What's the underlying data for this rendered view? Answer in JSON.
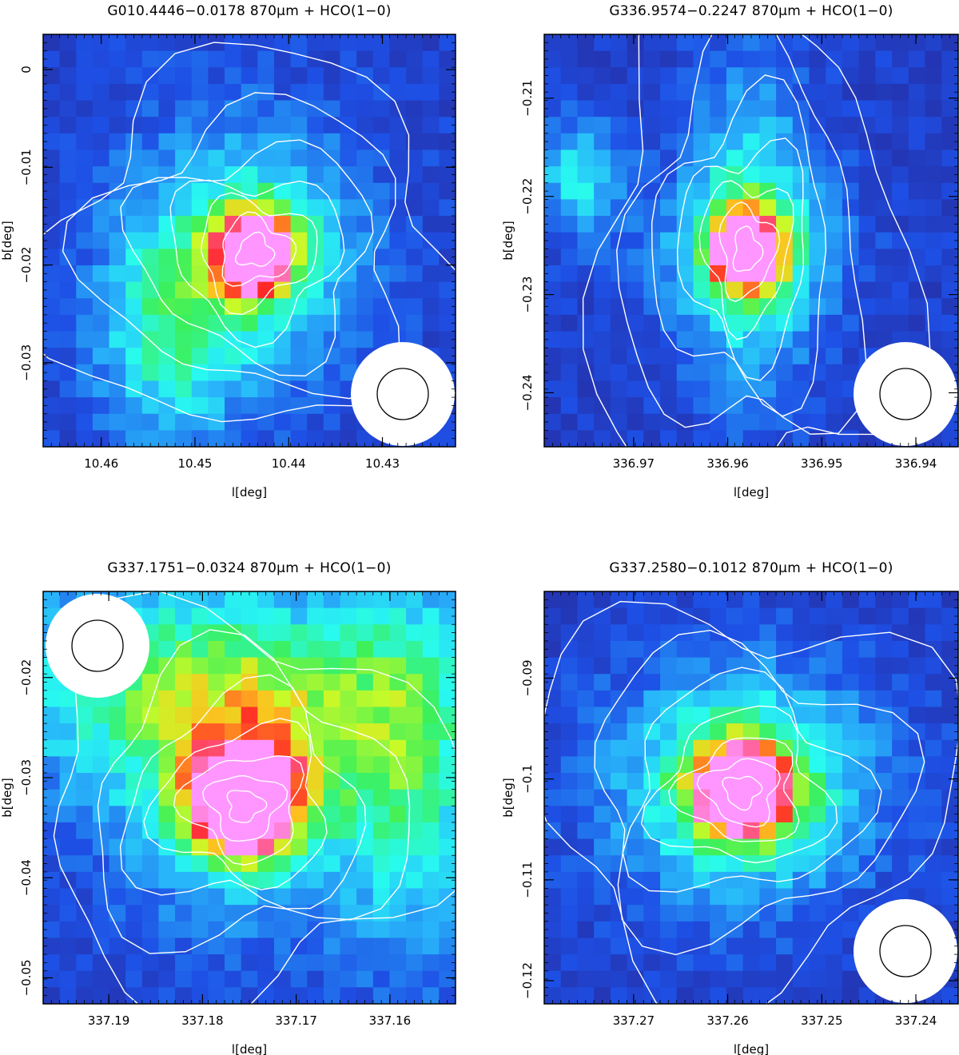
{
  "chart_data": [
    {
      "type": "heatmap",
      "title": "G010.4446−0.0178 870μm + HCO(1−0)",
      "xlabel": "l[deg]",
      "ylabel": "b[deg]",
      "xlim": [
        10.4662,
        10.4222
      ],
      "ylim": [
        -0.0386,
        0.0036
      ],
      "xticks": [
        "10.46",
        "10.45",
        "10.44",
        "10.43"
      ],
      "yticks": [
        "0",
        "−0.01",
        "−0.02",
        "−0.03"
      ],
      "peak": {
        "l": 10.4436,
        "b": -0.0186
      },
      "beam_corner": "bottom-right"
    },
    {
      "type": "heatmap",
      "title": "G336.9574−0.2247 870μm + HCO(1−0)",
      "xlabel": "l[deg]",
      "ylabel": "b[deg]",
      "xlim": [
        336.9795,
        336.9355
      ],
      "ylim": [
        -0.2455,
        -0.2035
      ],
      "xticks": [
        "336.97",
        "336.96",
        "336.95",
        "336.94"
      ],
      "yticks": [
        "−0.21",
        "−0.22",
        "−0.23",
        "−0.24"
      ],
      "peak": {
        "l": 336.958,
        "b": -0.2255
      },
      "beam_corner": "bottom-right"
    },
    {
      "type": "heatmap",
      "title": "G337.1751−0.0324 870μm + HCO(1−0)",
      "xlabel": "l[deg]",
      "ylabel": "b[deg]",
      "xlim": [
        337.197,
        337.153
      ],
      "ylim": [
        -0.0526,
        -0.0114
      ],
      "xticks": [
        "337.19",
        "337.18",
        "337.17",
        "337.16"
      ],
      "yticks": [
        "−0.02",
        "−0.03",
        "−0.04",
        "−0.05"
      ],
      "peak": {
        "l": 337.1755,
        "b": -0.0328
      },
      "beam_corner": "top-left"
    },
    {
      "type": "heatmap",
      "title": "G337.2580−0.1012 870μm + HCO(1−0)",
      "xlabel": "l[deg]",
      "ylabel": "b[deg]",
      "xlim": [
        337.2795,
        337.2355
      ],
      "ylim": [
        -0.1223,
        -0.0814
      ],
      "xticks": [
        "337.27",
        "337.26",
        "337.25",
        "337.24"
      ],
      "yticks": [
        "−0.09",
        "−0.1",
        "−0.11",
        "−0.12"
      ],
      "peak": {
        "l": 337.2585,
        "b": -0.1012
      },
      "beam_corner": "bottom-right"
    }
  ]
}
